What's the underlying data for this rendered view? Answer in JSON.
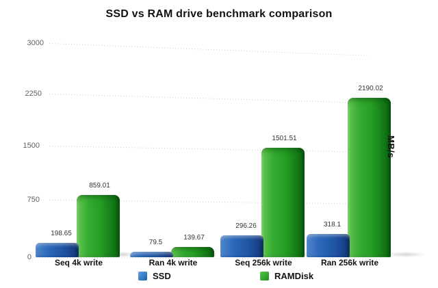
{
  "title": "SSD vs RAM drive benchmark comparison",
  "axis": {
    "unit_label": "MB/s",
    "ytick_labels": [
      "0",
      "750",
      "1500",
      "2250",
      "3000"
    ]
  },
  "legend": {
    "items": [
      {
        "label": "SSD"
      },
      {
        "label": "RAMDisk"
      }
    ]
  },
  "chart_data": {
    "type": "bar",
    "title": "SSD vs RAM drive benchmark comparison",
    "categories": [
      "Seq 4k write",
      "Ran 4k write",
      "Seq 256k write",
      "Ran 256k write"
    ],
    "series": [
      {
        "name": "SSD",
        "color": "#2563b5",
        "values": [
          198.65,
          79.5,
          296.26,
          318.1
        ]
      },
      {
        "name": "RAMDisk",
        "color": "#2da42b",
        "values": [
          859.01,
          139.67,
          1501.51,
          2190.02
        ]
      }
    ],
    "value_labels": [
      [
        "198.65",
        "79.5",
        "296.26",
        "318.1"
      ],
      [
        "859.01",
        "139.67",
        "1501.51",
        "2190.02"
      ]
    ],
    "ylabel": "MB/s",
    "yticks": [
      0,
      750,
      1500,
      2250,
      3000
    ],
    "ylim": [
      0,
      3000
    ],
    "grid": "dotted-horizontal",
    "legend_position": "bottom",
    "style": "3d-rounded-bars",
    "colors": {
      "ssd": "#2563b5",
      "ramdisk": "#2da42b",
      "grid": "#cbcbcb",
      "tick_label": "#5f5f5f",
      "value_label": "#333333",
      "title": "#111111",
      "background": "#ffffff"
    }
  }
}
